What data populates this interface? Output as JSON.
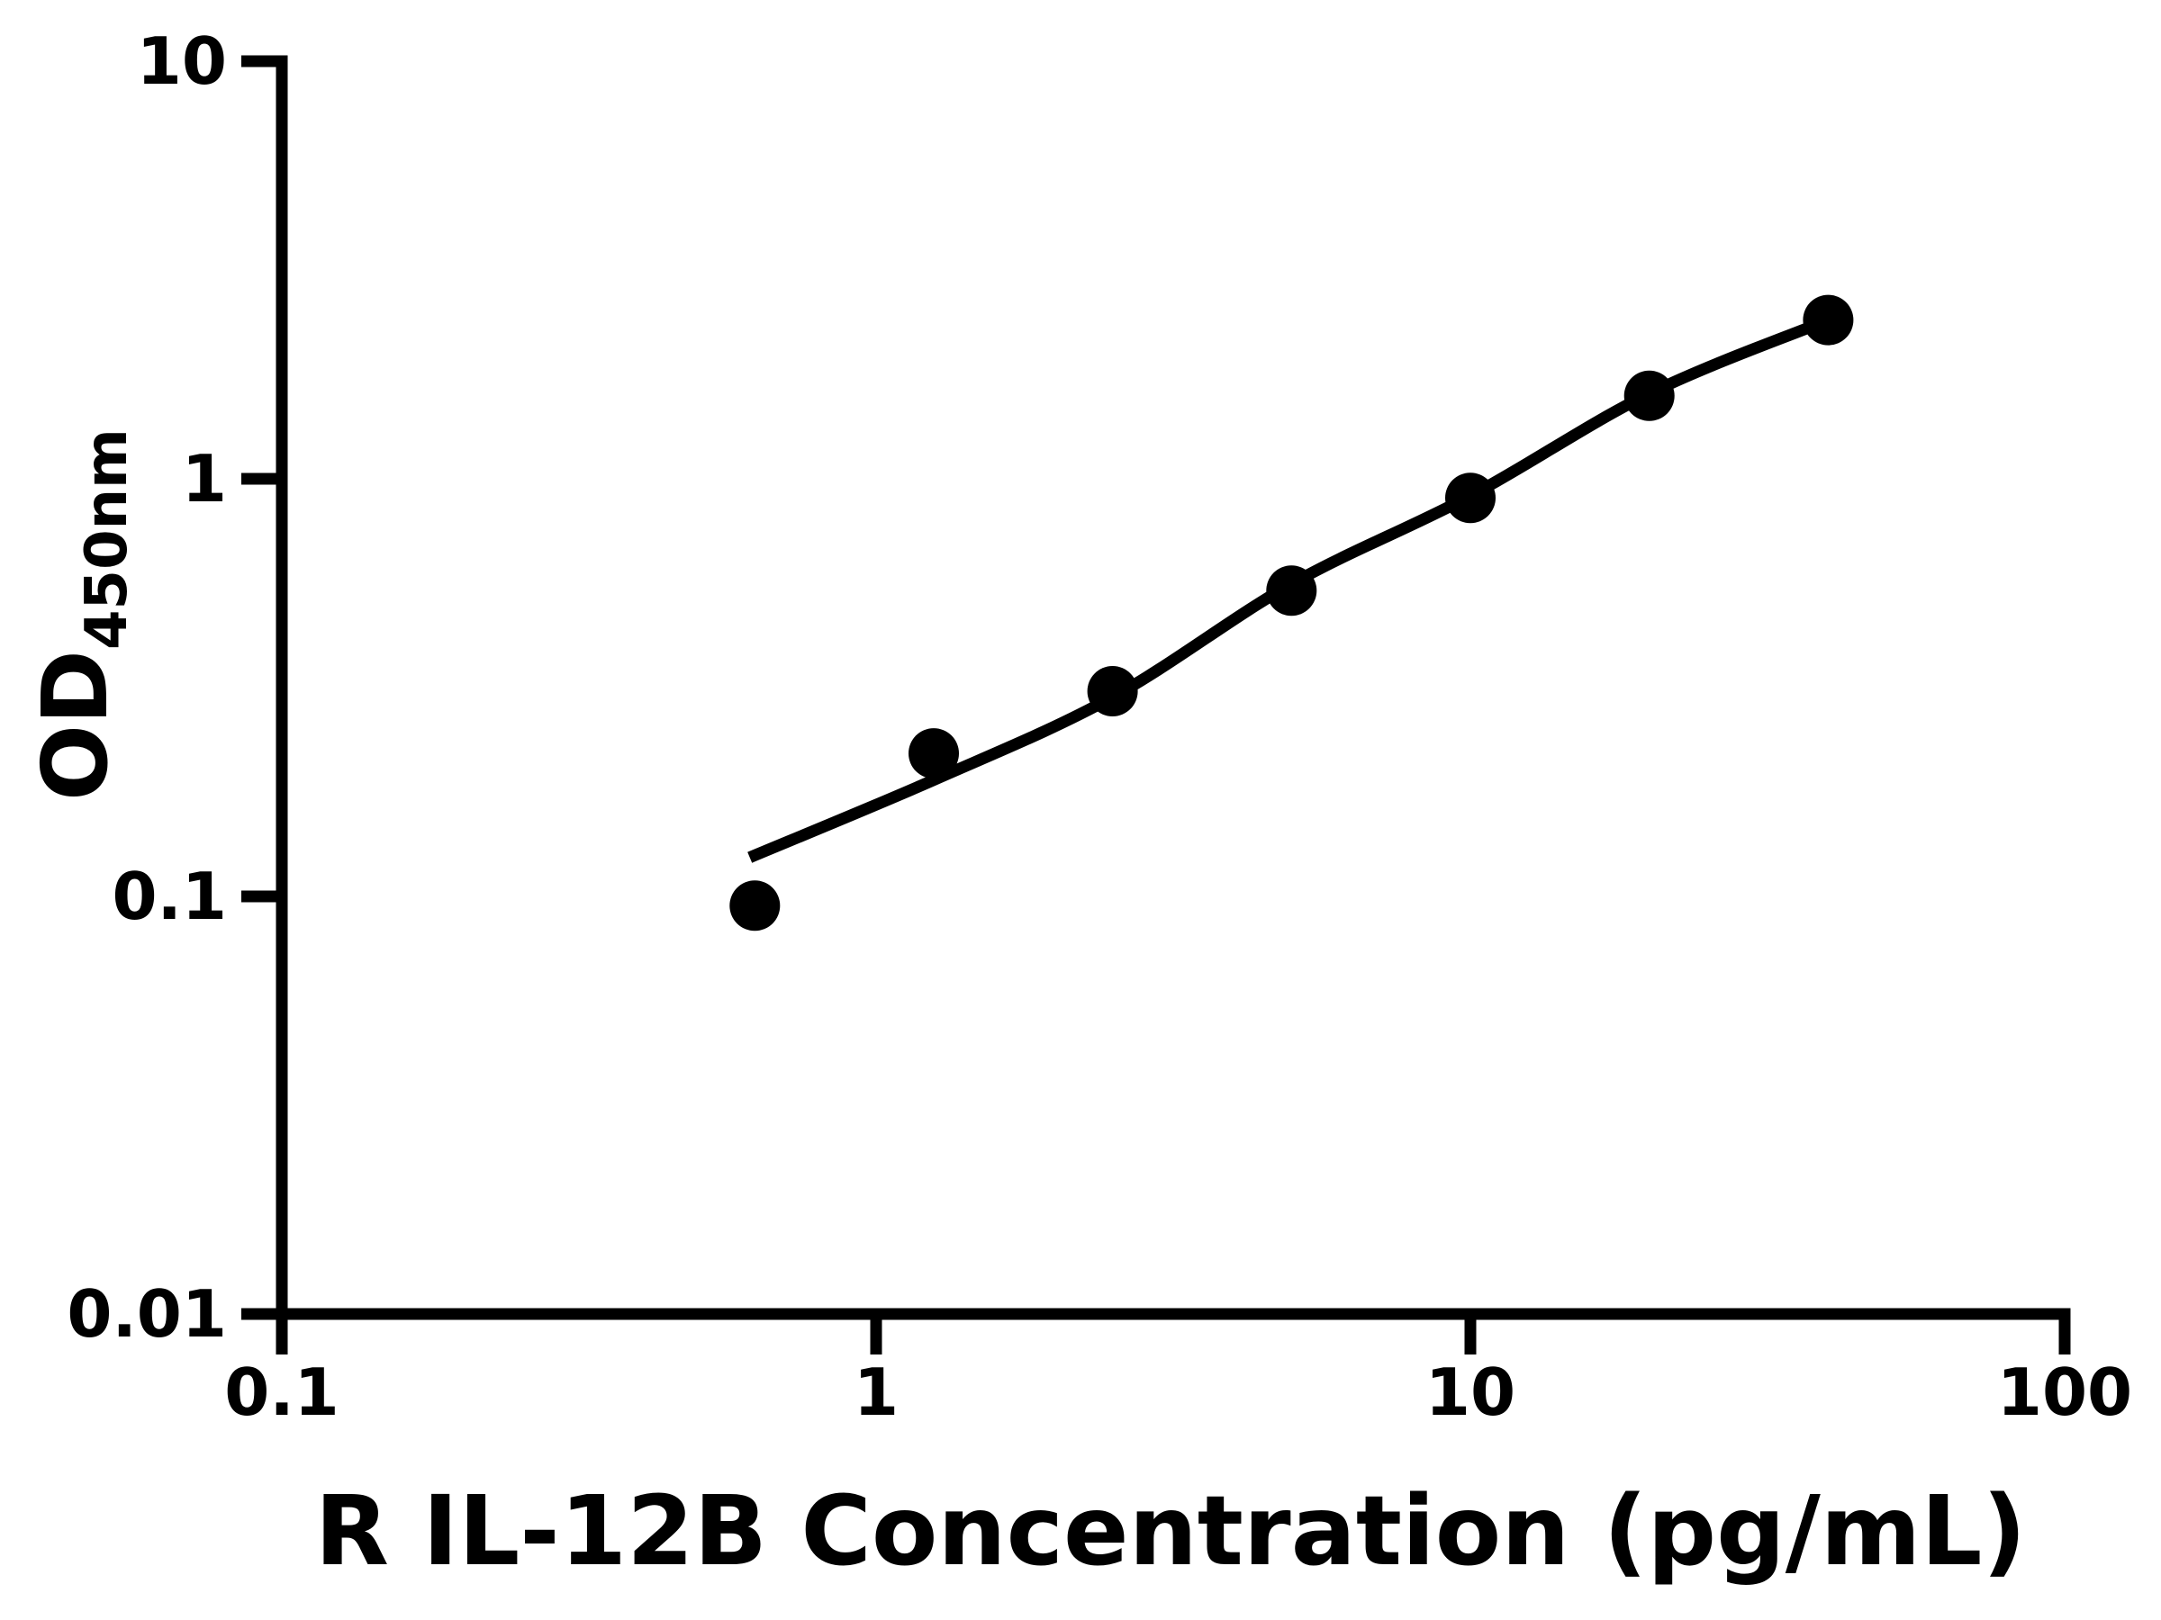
{
  "figure": {
    "background_color": "#ffffff",
    "ink_color": "#000000"
  },
  "chart_data": {
    "type": "scatter",
    "title": "",
    "xlabel": "R IL-12B Concentration (pg/mL)",
    "ylabel_main": "OD",
    "ylabel_sub": "450nm",
    "x_scale": "log",
    "y_scale": "log",
    "xlim": [
      0.1,
      100
    ],
    "ylim": [
      0.01,
      10
    ],
    "x_tick_values": [
      0.1,
      1,
      10,
      100
    ],
    "x_tick_labels": [
      "0.1",
      "1",
      "10",
      "100"
    ],
    "y_tick_values": [
      0.01,
      0.1,
      1,
      10
    ],
    "y_tick_labels": [
      "0.01",
      "0.1",
      "1",
      "10"
    ],
    "grid": "off",
    "legend": "none",
    "marker": {
      "shape": "circle",
      "color": "#000000",
      "radius_px": 28
    },
    "points": {
      "x": [
        0.625,
        1.25,
        2.5,
        5,
        10,
        20,
        40
      ],
      "y": [
        0.095,
        0.22,
        0.31,
        0.54,
        0.9,
        1.58,
        2.4
      ]
    },
    "fit_curve": {
      "description": "4PL standard-curve fit line as drawn",
      "color": "#000000",
      "x": [
        0.613,
        1.25,
        2.5,
        5,
        10,
        20,
        40
      ],
      "y": [
        0.124,
        0.19,
        0.3,
        0.56,
        0.91,
        1.6,
        2.4
      ]
    }
  }
}
